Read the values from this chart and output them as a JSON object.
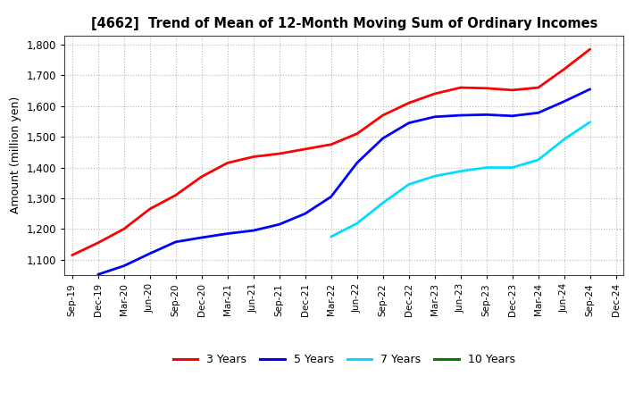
{
  "title": "[4662]  Trend of Mean of 12-Month Moving Sum of Ordinary Incomes",
  "ylabel": "Amount (million yen)",
  "ylim": [
    1050,
    1830
  ],
  "yticks": [
    1100,
    1200,
    1300,
    1400,
    1500,
    1600,
    1700,
    1800
  ],
  "background_color": "#ffffff",
  "grid_color": "#999999",
  "x_labels": [
    "Sep-19",
    "Dec-19",
    "Mar-20",
    "Jun-20",
    "Sep-20",
    "Dec-20",
    "Mar-21",
    "Jun-21",
    "Sep-21",
    "Dec-21",
    "Mar-22",
    "Jun-22",
    "Sep-22",
    "Dec-22",
    "Mar-23",
    "Jun-23",
    "Sep-23",
    "Dec-23",
    "Mar-24",
    "Jun-24",
    "Sep-24",
    "Dec-24"
  ],
  "series": {
    "3 Years": {
      "color": "#ff0000",
      "data_x": [
        0,
        1,
        2,
        3,
        4,
        5,
        6,
        7,
        8,
        9,
        10,
        11,
        12,
        13,
        14,
        15,
        16,
        17,
        18,
        19,
        20
      ],
      "data_y": [
        1115,
        1155,
        1200,
        1265,
        1310,
        1370,
        1415,
        1435,
        1445,
        1460,
        1475,
        1510,
        1570,
        1610,
        1640,
        1660,
        1658,
        1652,
        1660,
        1720,
        1785
      ]
    },
    "5 Years": {
      "color": "#0000ff",
      "data_x": [
        1,
        2,
        3,
        4,
        5,
        6,
        7,
        8,
        9,
        10,
        11,
        12,
        13,
        14,
        15,
        16,
        17,
        18,
        19,
        20
      ],
      "data_y": [
        1052,
        1080,
        1120,
        1158,
        1172,
        1185,
        1195,
        1215,
        1250,
        1305,
        1415,
        1495,
        1545,
        1565,
        1570,
        1572,
        1568,
        1578,
        1615,
        1655
      ]
    },
    "7 Years": {
      "color": "#00ddff",
      "data_x": [
        10,
        11,
        12,
        13,
        14,
        15,
        16,
        17,
        18,
        19,
        20
      ],
      "data_y": [
        1175,
        1218,
        1285,
        1345,
        1372,
        1388,
        1400,
        1400,
        1425,
        1492,
        1548
      ]
    },
    "10 Years": {
      "color": "#008000",
      "data_x": [],
      "data_y": []
    }
  },
  "legend_entries": [
    "3 Years",
    "5 Years",
    "7 Years",
    "10 Years"
  ],
  "legend_colors": [
    "#ff0000",
    "#0000ff",
    "#00ddff",
    "#008000"
  ]
}
